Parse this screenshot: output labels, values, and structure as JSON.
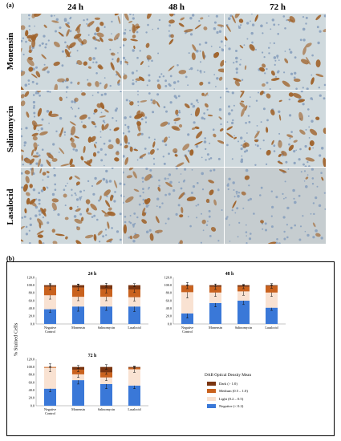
{
  "panel_a_label": "(a)",
  "panel_b_label": "(b)",
  "micrographs": {
    "columns": [
      "24 h",
      "48 h",
      "72 h"
    ],
    "rows": [
      "Monensin",
      "Salinomycin",
      "Lasalocid"
    ]
  },
  "colors": {
    "negative": "#3a78d8",
    "light": "#f9e2d2",
    "medium": "#c9621e",
    "dark": "#7a3510",
    "dab_brown": "#a0642d",
    "background_cells": "#cfd9dd"
  },
  "chart_data": [
    {
      "type": "bar",
      "stacked": true,
      "title": "24 h",
      "categories": [
        "Negative Control",
        "Monensin",
        "Salinomycin",
        "Lasalocid"
      ],
      "ylim": [
        0,
        120
      ],
      "yticks": [
        0.0,
        20.0,
        40.0,
        60.0,
        80.0,
        100.0,
        120.0
      ],
      "series": [
        {
          "name": "Negative  (< 0.2)",
          "values": [
            38,
            45,
            45,
            45
          ],
          "errors": [
            8,
            12,
            10,
            13
          ]
        },
        {
          "name": "Light (0.2 – 0.5)",
          "values": [
            36,
            25,
            25,
            24
          ],
          "errors": [
            10,
            10,
            10,
            10
          ]
        },
        {
          "name": "Medium (0.5 – 1.0)",
          "values": [
            22,
            24,
            20,
            20
          ],
          "errors": [
            8,
            8,
            10,
            8
          ]
        },
        {
          "name": "Dark (> 1.0)",
          "values": [
            4,
            6,
            10,
            11
          ],
          "errors": [
            2,
            3,
            5,
            4
          ]
        }
      ]
    },
    {
      "type": "bar",
      "stacked": true,
      "title": "48 h",
      "categories": [
        "Negative Control",
        "Monensin",
        "Salinomycin",
        "Lasalocid"
      ],
      "ylim": [
        0,
        120
      ],
      "yticks": [
        0.0,
        20.0,
        40.0,
        60.0,
        80.0,
        100.0,
        120.0
      ],
      "series": [
        {
          "name": "Negative  (< 0.2)",
          "values": [
            27,
            54,
            60,
            42
          ],
          "errors": [
            12,
            10,
            10,
            7
          ]
        },
        {
          "name": "Light (0.2 – 0.5)",
          "values": [
            55,
            27,
            24,
            39
          ],
          "errors": [
            15,
            10,
            10,
            10
          ]
        },
        {
          "name": "Medium (0.5 – 1.0)",
          "values": [
            17,
            15,
            12,
            17
          ],
          "errors": [
            8,
            7,
            5,
            6
          ]
        },
        {
          "name": "Dark (> 1.0)",
          "values": [
            1,
            4,
            4,
            2
          ],
          "errors": [
            1,
            3,
            2,
            1
          ]
        }
      ]
    },
    {
      "type": "bar",
      "stacked": true,
      "title": "72 h",
      "categories": [
        "Negative Control",
        "Monensin",
        "Salinomycin",
        "Lasalocid"
      ],
      "ylim": [
        0,
        120
      ],
      "yticks": [
        0.0,
        20.0,
        40.0,
        60.0,
        80.0,
        100.0,
        120.0
      ],
      "series": [
        {
          "name": "Negative  (< 0.2)",
          "values": [
            44,
            66,
            56,
            52
          ],
          "errors": [
            8,
            10,
            12,
            8
          ]
        },
        {
          "name": "Light (0.2 – 0.5)",
          "values": [
            54,
            15,
            17,
            42
          ],
          "errors": [
            10,
            8,
            8,
            8
          ]
        },
        {
          "name": "Medium (0.5 – 1.0)",
          "values": [
            2,
            12,
            13,
            4
          ],
          "errors": [
            1,
            5,
            5,
            2
          ]
        },
        {
          "name": "Dark (> 1.0)",
          "values": [
            0,
            7,
            14,
            2
          ],
          "errors": [
            0,
            4,
            6,
            1
          ]
        }
      ]
    }
  ],
  "ylabel": "% Stained Cells",
  "legend": {
    "title": "DAB Optical Density Mean",
    "items": [
      {
        "label": "Dark (> 1.0)",
        "color": "#7a3510"
      },
      {
        "label": "Medium (0.5 – 1.0)",
        "color": "#c9621e"
      },
      {
        "label": "Light (0.2 – 0.5)",
        "color": "#f9e2d2"
      },
      {
        "label": "Negative  (< 0.2)",
        "color": "#3a78d8"
      }
    ]
  }
}
